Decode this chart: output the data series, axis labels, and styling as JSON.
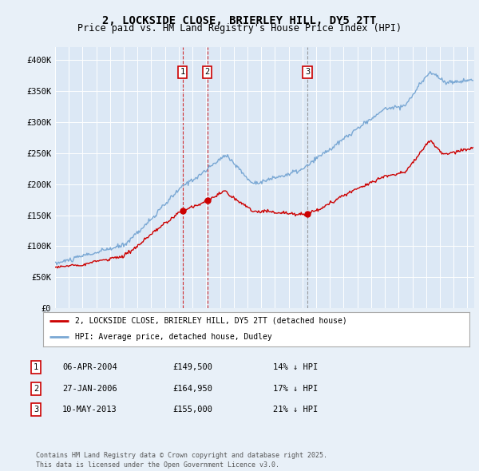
{
  "title": "2, LOCKSIDE CLOSE, BRIERLEY HILL, DY5 2TT",
  "subtitle": "Price paid vs. HM Land Registry's House Price Index (HPI)",
  "legend_label_red": "2, LOCKSIDE CLOSE, BRIERLEY HILL, DY5 2TT (detached house)",
  "legend_label_blue": "HPI: Average price, detached house, Dudley",
  "footer": "Contains HM Land Registry data © Crown copyright and database right 2025.\nThis data is licensed under the Open Government Licence v3.0.",
  "transactions": [
    {
      "num": 1,
      "date": "06-APR-2004",
      "price": 149500,
      "hpi_diff": "14% ↓ HPI",
      "year": 2004.27,
      "vline_color": "#cc0000"
    },
    {
      "num": 2,
      "date": "27-JAN-2006",
      "price": 164950,
      "hpi_diff": "17% ↓ HPI",
      "year": 2006.08,
      "vline_color": "#cc0000"
    },
    {
      "num": 3,
      "date": "10-MAY-2013",
      "price": 155000,
      "hpi_diff": "21% ↓ HPI",
      "year": 2013.36,
      "vline_color": "#888888"
    }
  ],
  "ylim": [
    0,
    420000
  ],
  "xlim_start": 1995.0,
  "xlim_end": 2025.5,
  "background_color": "#e8f0f8",
  "plot_bg_color": "#dce8f5",
  "grid_color": "#ffffff",
  "red_line_color": "#cc0000",
  "blue_line_color": "#7aa8d4"
}
